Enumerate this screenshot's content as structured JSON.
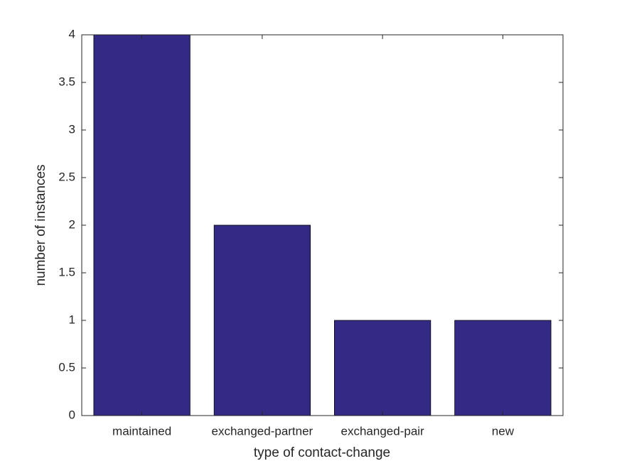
{
  "chart_data": {
    "type": "bar",
    "x_label": "type of contact-change",
    "y_label": "number of instances",
    "categories": [
      "maintained",
      "exchanged-partner",
      "exchanged-pair",
      "new"
    ],
    "values": [
      4,
      2,
      1,
      1
    ],
    "color": "#332a85",
    "ylim": [
      0,
      4
    ],
    "yticks": [
      0,
      0.5,
      1,
      1.5,
      2,
      2.5,
      3,
      3.5,
      4
    ],
    "grid": false
  }
}
